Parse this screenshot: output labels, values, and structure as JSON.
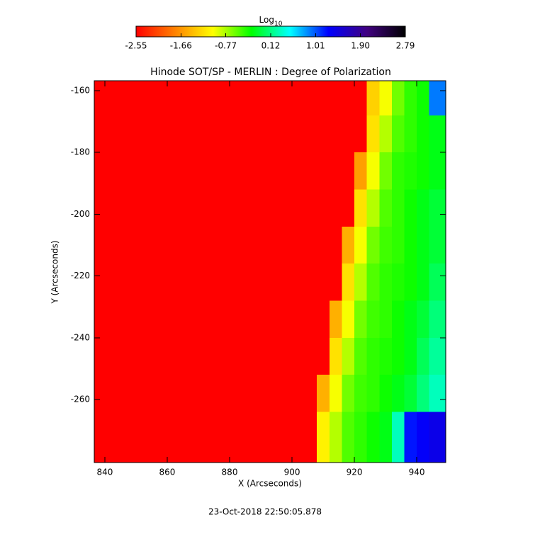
{
  "chart_data": {
    "type": "heatmap",
    "title": "Hinode SOT/SP - MERLIN : Degree of Polarization",
    "xlabel": "X (Arcseconds)",
    "ylabel": "Y (Arcseconds)",
    "footer": "23-Oct-2018 22:50:05.878",
    "colorbar_title": "Log",
    "colorbar_title_sub": "10",
    "colormap": [
      "#ff0000",
      "#ff8000",
      "#ffff00",
      "#00ff00",
      "#00ffff",
      "#0000ff",
      "#400080",
      "#000000"
    ],
    "zlim": [
      -2.55,
      2.79
    ],
    "zticks": [
      -2.55,
      -1.66,
      -0.77,
      0.12,
      1.01,
      {
        "value": 1.9,
        "label": "1.90"
      },
      2.79
    ],
    "xlim": [
      836.6,
      949.3
    ],
    "ylim": [
      -280.4,
      -156.8
    ],
    "xticks": [
      840,
      860,
      880,
      900,
      920,
      940
    ],
    "yticks": [
      -260,
      -240,
      -220,
      -200,
      -180,
      -160
    ],
    "x_edges": [
      836.6,
      900,
      904,
      908,
      912,
      916,
      920,
      924,
      928,
      932,
      936,
      940,
      944,
      949.3
    ],
    "y_edges": [
      -156.8,
      -168,
      -180,
      -192,
      -204,
      -216,
      -228,
      -240,
      -252,
      -264,
      -280.4
    ],
    "z": [
      [
        -2.55,
        -2.55,
        -2.55,
        -2.55,
        -2.55,
        -2.55,
        -2.55,
        -1.3,
        -1.0,
        -0.6,
        -0.4,
        -0.3,
        0.9
      ],
      [
        -2.55,
        -2.55,
        -2.55,
        -2.55,
        -2.55,
        -2.55,
        -2.55,
        -1.2,
        -0.8,
        -0.5,
        -0.4,
        -0.3,
        -0.2
      ],
      [
        -2.55,
        -2.55,
        -2.55,
        -2.55,
        -2.55,
        -2.55,
        -1.6,
        -1.0,
        -0.6,
        -0.4,
        -0.35,
        -0.3,
        -0.2
      ],
      [
        -2.55,
        -2.55,
        -2.55,
        -2.55,
        -2.55,
        -2.55,
        -1.2,
        -0.8,
        -0.5,
        -0.4,
        -0.3,
        -0.2,
        -0.1
      ],
      [
        -2.55,
        -2.55,
        -2.55,
        -2.55,
        -2.55,
        -1.5,
        -1.0,
        -0.6,
        -0.45,
        -0.4,
        -0.3,
        -0.2,
        -0.1
      ],
      [
        -2.55,
        -2.55,
        -2.55,
        -2.55,
        -2.55,
        -1.2,
        -0.8,
        -0.5,
        -0.4,
        -0.35,
        -0.3,
        -0.2,
        0.0
      ],
      [
        -2.55,
        -2.55,
        -2.55,
        -2.55,
        -1.5,
        -1.0,
        -0.6,
        -0.45,
        -0.4,
        -0.3,
        -0.2,
        -0.1,
        0.1
      ],
      [
        -2.55,
        -2.55,
        -2.55,
        -2.55,
        -1.2,
        -0.8,
        -0.5,
        -0.4,
        -0.35,
        -0.3,
        -0.2,
        0.0,
        0.2
      ],
      [
        -2.55,
        -2.55,
        -2.55,
        -1.5,
        -1.0,
        -0.6,
        -0.45,
        -0.4,
        -0.3,
        -0.2,
        -0.1,
        0.1,
        0.3
      ],
      [
        -2.55,
        -2.55,
        -2.55,
        -1.1,
        -0.8,
        -0.5,
        -0.4,
        -0.3,
        -0.2,
        0.3,
        1.2,
        1.3,
        1.4
      ]
    ]
  }
}
